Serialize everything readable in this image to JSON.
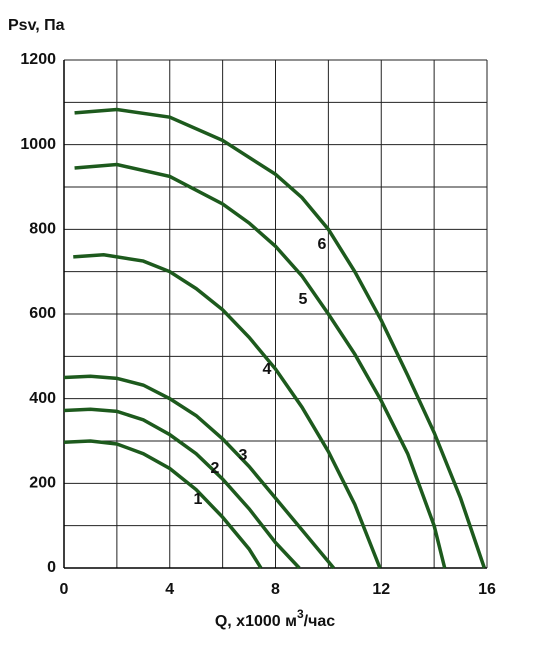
{
  "chart_data": {
    "type": "line",
    "ylabel": "Psv, Па",
    "xlabel": {
      "text": "Q, x1000 м",
      "sup": "3",
      "after": "/час"
    },
    "xlim": [
      0,
      16
    ],
    "xticks": [
      0,
      4,
      8,
      12,
      16
    ],
    "x_minor_ticks": [
      2,
      6,
      10,
      14
    ],
    "ylim": [
      0,
      1200
    ],
    "yticks": [
      0,
      200,
      400,
      600,
      800,
      1000,
      1200
    ],
    "y_minor_ticks": [
      100,
      300,
      500,
      700,
      900,
      1100
    ],
    "grid": true,
    "series": [
      {
        "name": "1",
        "color": "#1d5a1d",
        "x": [
          0,
          1,
          2,
          3,
          4,
          5,
          6,
          7,
          7.45
        ],
        "values": [
          297,
          300,
          293,
          270,
          235,
          185,
          120,
          45,
          0
        ]
      },
      {
        "name": "2",
        "color": "#1d5a1d",
        "x": [
          0,
          1,
          2,
          3,
          4,
          5,
          6,
          7,
          8,
          8.9
        ],
        "values": [
          372,
          375,
          370,
          350,
          315,
          270,
          210,
          140,
          60,
          0
        ]
      },
      {
        "name": "3",
        "color": "#1d5a1d",
        "x": [
          0,
          1,
          2,
          3,
          4,
          5,
          6,
          7,
          8,
          9,
          10.2
        ],
        "values": [
          450,
          453,
          448,
          432,
          400,
          360,
          305,
          240,
          165,
          90,
          0
        ]
      },
      {
        "name": "4",
        "color": "#1d5a1d",
        "x": [
          0.35,
          1.5,
          3,
          4,
          5,
          6,
          7,
          8,
          9,
          10,
          11,
          11.95
        ],
        "values": [
          735,
          740,
          725,
          700,
          660,
          610,
          545,
          470,
          380,
          275,
          150,
          0
        ]
      },
      {
        "name": "5",
        "color": "#1d5a1d",
        "x": [
          0.4,
          2,
          4,
          6,
          7,
          8,
          9,
          10,
          11,
          12,
          13,
          14,
          14.4
        ],
        "values": [
          945,
          953,
          925,
          860,
          815,
          760,
          690,
          600,
          505,
          395,
          270,
          100,
          0
        ]
      },
      {
        "name": "6",
        "color": "#1d5a1d",
        "x": [
          0.4,
          2,
          4,
          6,
          8,
          9,
          10,
          11,
          12,
          13,
          14,
          15,
          15.9
        ],
        "values": [
          1075,
          1083,
          1065,
          1010,
          930,
          875,
          800,
          700,
          585,
          455,
          320,
          165,
          0
        ]
      }
    ]
  }
}
